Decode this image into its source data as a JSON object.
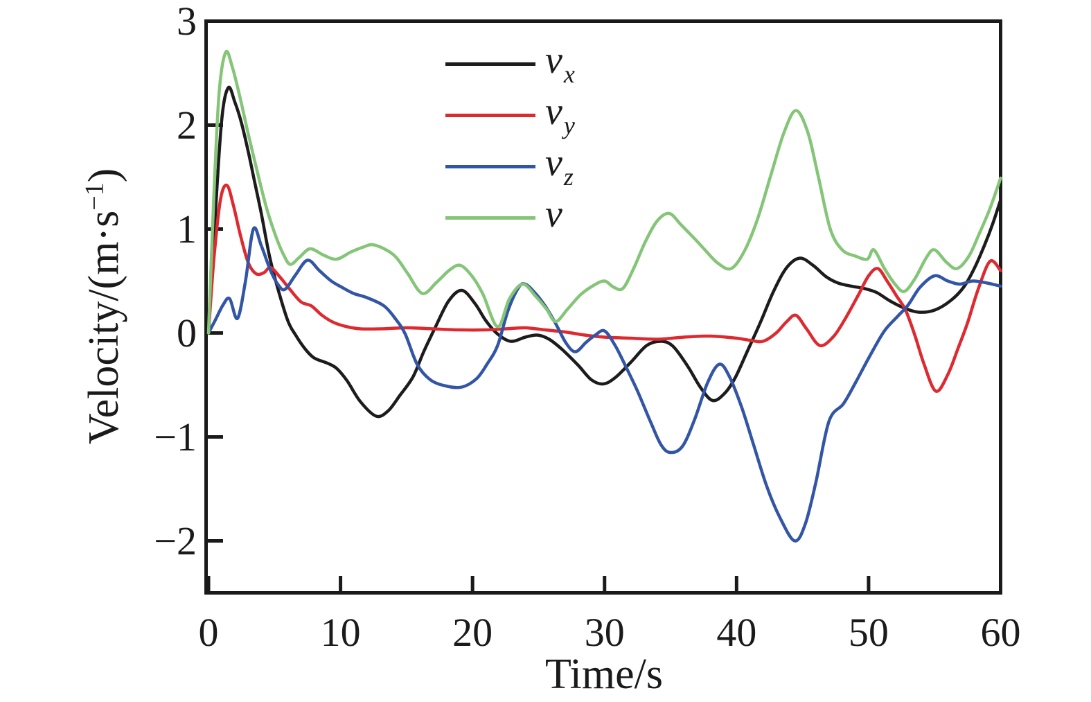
{
  "figure": {
    "background": "#ffffff",
    "axis_color": "#1a1a1a"
  },
  "axes": {
    "x": {
      "label": "Time/s",
      "min": 0,
      "max": 60,
      "tick_values": [
        0,
        10,
        20,
        30,
        40,
        50,
        60
      ],
      "tick_labels": [
        "0",
        "10",
        "20",
        "30",
        "40",
        "50",
        "60"
      ]
    },
    "y": {
      "label_prefix": "Velocity/(m·s",
      "label_sup": "−1",
      "label_suffix": ")",
      "min": -2.5,
      "max": 3,
      "tick_values": [
        3,
        2,
        1,
        0,
        -1,
        -2
      ],
      "tick_labels": [
        "3",
        "2",
        "1",
        "0",
        "−1",
        "−2"
      ]
    }
  },
  "legend": {
    "items": [
      {
        "main": "v",
        "sub": "x",
        "color": "#1c1c1c"
      },
      {
        "main": "v",
        "sub": "y",
        "color": "#dd2a30"
      },
      {
        "main": "v",
        "sub": "z",
        "color": "#3355a5"
      },
      {
        "main": "v",
        "sub": "",
        "color": "#85c578"
      }
    ]
  },
  "chart_data": {
    "type": "line",
    "title": "",
    "xlabel": "Time/s",
    "ylabel": "Velocity/(m·s−1)",
    "xlim": [
      0,
      60
    ],
    "ylim": [
      -2.5,
      3
    ],
    "grid": false,
    "legend_position": "upper-center",
    "series": [
      {
        "name": "vx",
        "color": "#1c1c1c",
        "points": [
          [
            0,
            0
          ],
          [
            0.5,
            1.1
          ],
          [
            1,
            2.05
          ],
          [
            1.5,
            2.36
          ],
          [
            2,
            2.22
          ],
          [
            2.5,
            2.02
          ],
          [
            3,
            1.75
          ],
          [
            3.5,
            1.45
          ],
          [
            4,
            1.15
          ],
          [
            4.6,
            0.75
          ],
          [
            5.2,
            0.45
          ],
          [
            6,
            0.12
          ],
          [
            6.6,
            -0.02
          ],
          [
            7.3,
            -0.15
          ],
          [
            8,
            -0.24
          ],
          [
            9,
            -0.29
          ],
          [
            9.7,
            -0.34
          ],
          [
            10.5,
            -0.46
          ],
          [
            11.5,
            -0.66
          ],
          [
            12.7,
            -0.8
          ],
          [
            13.6,
            -0.75
          ],
          [
            14.5,
            -0.6
          ],
          [
            15.5,
            -0.42
          ],
          [
            16.3,
            -0.18
          ],
          [
            17.2,
            0.06
          ],
          [
            18.2,
            0.31
          ],
          [
            19.2,
            0.41
          ],
          [
            20.2,
            0.28
          ],
          [
            21,
            0.12
          ],
          [
            21.9,
            -0.01
          ],
          [
            22.9,
            -0.08
          ],
          [
            24,
            -0.04
          ],
          [
            24.9,
            -0.02
          ],
          [
            25.8,
            -0.06
          ],
          [
            26.8,
            -0.16
          ],
          [
            28,
            -0.31
          ],
          [
            29,
            -0.45
          ],
          [
            29.9,
            -0.49
          ],
          [
            30.8,
            -0.43
          ],
          [
            32,
            -0.28
          ],
          [
            33.2,
            -0.12
          ],
          [
            34.3,
            -0.08
          ],
          [
            35.2,
            -0.13
          ],
          [
            36.3,
            -0.32
          ],
          [
            37.3,
            -0.53
          ],
          [
            38.2,
            -0.65
          ],
          [
            39.1,
            -0.58
          ],
          [
            39.9,
            -0.43
          ],
          [
            40.8,
            -0.18
          ],
          [
            41.8,
            0.1
          ],
          [
            42.8,
            0.4
          ],
          [
            43.8,
            0.63
          ],
          [
            44.8,
            0.72
          ],
          [
            45.8,
            0.65
          ],
          [
            46.8,
            0.54
          ],
          [
            47.7,
            0.48
          ],
          [
            48.7,
            0.45
          ],
          [
            49.6,
            0.43
          ],
          [
            50.6,
            0.39
          ],
          [
            51.6,
            0.31
          ],
          [
            52.7,
            0.24
          ],
          [
            53.8,
            0.2
          ],
          [
            55,
            0.22
          ],
          [
            56.2,
            0.31
          ],
          [
            57.2,
            0.44
          ],
          [
            58,
            0.62
          ],
          [
            58.8,
            0.85
          ],
          [
            59.4,
            1.05
          ],
          [
            60,
            1.28
          ]
        ]
      },
      {
        "name": "vy",
        "color": "#dd2a30",
        "points": [
          [
            0,
            0
          ],
          [
            0.4,
            0.7
          ],
          [
            0.9,
            1.28
          ],
          [
            1.4,
            1.42
          ],
          [
            1.9,
            1.22
          ],
          [
            2.4,
            0.95
          ],
          [
            3,
            0.68
          ],
          [
            3.6,
            0.57
          ],
          [
            4.2,
            0.58
          ],
          [
            4.7,
            0.63
          ],
          [
            5.4,
            0.54
          ],
          [
            6.1,
            0.43
          ],
          [
            7,
            0.3
          ],
          [
            7.8,
            0.26
          ],
          [
            8.6,
            0.17
          ],
          [
            9.5,
            0.1
          ],
          [
            10.5,
            0.06
          ],
          [
            11.5,
            0.04
          ],
          [
            13,
            0.04
          ],
          [
            15,
            0.05
          ],
          [
            17,
            0.04
          ],
          [
            19,
            0.03
          ],
          [
            21,
            0.03
          ],
          [
            22.5,
            0.04
          ],
          [
            24,
            0.05
          ],
          [
            25.5,
            0.03
          ],
          [
            27,
            0.01
          ],
          [
            28.5,
            -0.02
          ],
          [
            30,
            -0.04
          ],
          [
            32,
            -0.05
          ],
          [
            34,
            -0.06
          ],
          [
            36,
            -0.04
          ],
          [
            38,
            -0.03
          ],
          [
            40,
            -0.05
          ],
          [
            41,
            -0.07
          ],
          [
            42,
            -0.08
          ],
          [
            43,
            0
          ],
          [
            43.8,
            0.11
          ],
          [
            44.5,
            0.17
          ],
          [
            45.3,
            0.04
          ],
          [
            46.3,
            -0.12
          ],
          [
            47.3,
            -0.04
          ],
          [
            48.2,
            0.13
          ],
          [
            49.2,
            0.36
          ],
          [
            50,
            0.55
          ],
          [
            50.7,
            0.62
          ],
          [
            51.4,
            0.5
          ],
          [
            52.1,
            0.36
          ],
          [
            52.8,
            0.22
          ],
          [
            53.5,
            -0.02
          ],
          [
            54.2,
            -0.3
          ],
          [
            55.1,
            -0.56
          ],
          [
            56,
            -0.4
          ],
          [
            56.8,
            -0.14
          ],
          [
            57.5,
            0.1
          ],
          [
            58.3,
            0.42
          ],
          [
            59.2,
            0.69
          ],
          [
            60,
            0.6
          ]
        ]
      },
      {
        "name": "vz",
        "color": "#3355a5",
        "points": [
          [
            0,
            0
          ],
          [
            0.5,
            0.12
          ],
          [
            1.1,
            0.27
          ],
          [
            1.6,
            0.33
          ],
          [
            2.2,
            0.14
          ],
          [
            2.8,
            0.5
          ],
          [
            3.4,
            1.0
          ],
          [
            4,
            0.84
          ],
          [
            4.7,
            0.6
          ],
          [
            5.3,
            0.46
          ],
          [
            5.8,
            0.42
          ],
          [
            6.6,
            0.56
          ],
          [
            7.5,
            0.7
          ],
          [
            8.4,
            0.6
          ],
          [
            9.3,
            0.5
          ],
          [
            10.1,
            0.44
          ],
          [
            11,
            0.38
          ],
          [
            12,
            0.34
          ],
          [
            13.3,
            0.26
          ],
          [
            14.2,
            0.13
          ],
          [
            14.9,
            -0.01
          ],
          [
            15.8,
            -0.3
          ],
          [
            16.8,
            -0.45
          ],
          [
            18,
            -0.51
          ],
          [
            19.2,
            -0.52
          ],
          [
            20.3,
            -0.44
          ],
          [
            21.1,
            -0.3
          ],
          [
            21.9,
            -0.12
          ],
          [
            22.7,
            0.22
          ],
          [
            23.5,
            0.44
          ],
          [
            24,
            0.47
          ],
          [
            24.7,
            0.39
          ],
          [
            25.5,
            0.26
          ],
          [
            26.3,
            0.09
          ],
          [
            27.1,
            -0.1
          ],
          [
            27.8,
            -0.18
          ],
          [
            28.6,
            -0.09
          ],
          [
            29.3,
            -0.02
          ],
          [
            30,
            0.02
          ],
          [
            30.8,
            -0.12
          ],
          [
            31.6,
            -0.32
          ],
          [
            32.5,
            -0.56
          ],
          [
            33.5,
            -0.86
          ],
          [
            34.3,
            -1.08
          ],
          [
            35,
            -1.15
          ],
          [
            35.9,
            -1.09
          ],
          [
            36.8,
            -0.84
          ],
          [
            37.8,
            -0.48
          ],
          [
            38.7,
            -0.3
          ],
          [
            39.5,
            -0.43
          ],
          [
            40.4,
            -0.72
          ],
          [
            41.3,
            -1.08
          ],
          [
            42.3,
            -1.48
          ],
          [
            43.3,
            -1.78
          ],
          [
            44.4,
            -2.0
          ],
          [
            45.2,
            -1.84
          ],
          [
            46,
            -1.44
          ],
          [
            47,
            -0.85
          ],
          [
            48.1,
            -0.68
          ],
          [
            49,
            -0.48
          ],
          [
            50.1,
            -0.22
          ],
          [
            51.2,
            0.02
          ],
          [
            52.2,
            0.16
          ],
          [
            53,
            0.27
          ],
          [
            53.9,
            0.44
          ],
          [
            55,
            0.55
          ],
          [
            56,
            0.5
          ],
          [
            56.9,
            0.47
          ],
          [
            57.9,
            0.5
          ],
          [
            59,
            0.48
          ],
          [
            60,
            0.45
          ]
        ]
      },
      {
        "name": "v",
        "color": "#85c578",
        "points": [
          [
            0,
            0
          ],
          [
            0.4,
            1.3
          ],
          [
            0.8,
            2.3
          ],
          [
            1.3,
            2.7
          ],
          [
            1.8,
            2.56
          ],
          [
            2.4,
            2.26
          ],
          [
            3,
            1.92
          ],
          [
            3.7,
            1.55
          ],
          [
            4.4,
            1.2
          ],
          [
            5.1,
            0.93
          ],
          [
            5.7,
            0.75
          ],
          [
            6.2,
            0.66
          ],
          [
            6.9,
            0.73
          ],
          [
            7.7,
            0.81
          ],
          [
            8.7,
            0.75
          ],
          [
            9.7,
            0.71
          ],
          [
            10.8,
            0.78
          ],
          [
            11.8,
            0.83
          ],
          [
            12.4,
            0.85
          ],
          [
            13.3,
            0.81
          ],
          [
            14.2,
            0.73
          ],
          [
            15.1,
            0.57
          ],
          [
            16.2,
            0.38
          ],
          [
            17.3,
            0.49
          ],
          [
            18.3,
            0.61
          ],
          [
            19.1,
            0.65
          ],
          [
            20,
            0.54
          ],
          [
            20.8,
            0.37
          ],
          [
            21.9,
            0.06
          ],
          [
            22.8,
            0.33
          ],
          [
            23.8,
            0.47
          ],
          [
            24.8,
            0.35
          ],
          [
            25.6,
            0.23
          ],
          [
            26.3,
            0.11
          ],
          [
            27.2,
            0.23
          ],
          [
            28.2,
            0.37
          ],
          [
            29.2,
            0.46
          ],
          [
            30,
            0.5
          ],
          [
            30.7,
            0.44
          ],
          [
            31.4,
            0.43
          ],
          [
            32.2,
            0.62
          ],
          [
            33.1,
            0.88
          ],
          [
            34,
            1.08
          ],
          [
            34.9,
            1.15
          ],
          [
            35.8,
            1.04
          ],
          [
            36.8,
            0.91
          ],
          [
            37.6,
            0.8
          ],
          [
            38.6,
            0.67
          ],
          [
            39.6,
            0.62
          ],
          [
            40.6,
            0.79
          ],
          [
            41.6,
            1.1
          ],
          [
            42.6,
            1.52
          ],
          [
            43.6,
            1.93
          ],
          [
            44.5,
            2.14
          ],
          [
            45.4,
            1.93
          ],
          [
            46.2,
            1.5
          ],
          [
            47.1,
            1.0
          ],
          [
            48,
            0.8
          ],
          [
            49,
            0.74
          ],
          [
            49.9,
            0.71
          ],
          [
            50.4,
            0.8
          ],
          [
            51.2,
            0.62
          ],
          [
            52,
            0.47
          ],
          [
            52.7,
            0.4
          ],
          [
            53.5,
            0.52
          ],
          [
            54.4,
            0.73
          ],
          [
            55,
            0.8
          ],
          [
            55.9,
            0.68
          ],
          [
            56.7,
            0.62
          ],
          [
            57.6,
            0.74
          ],
          [
            58.4,
            0.96
          ],
          [
            59.2,
            1.2
          ],
          [
            60,
            1.49
          ]
        ]
      }
    ]
  }
}
